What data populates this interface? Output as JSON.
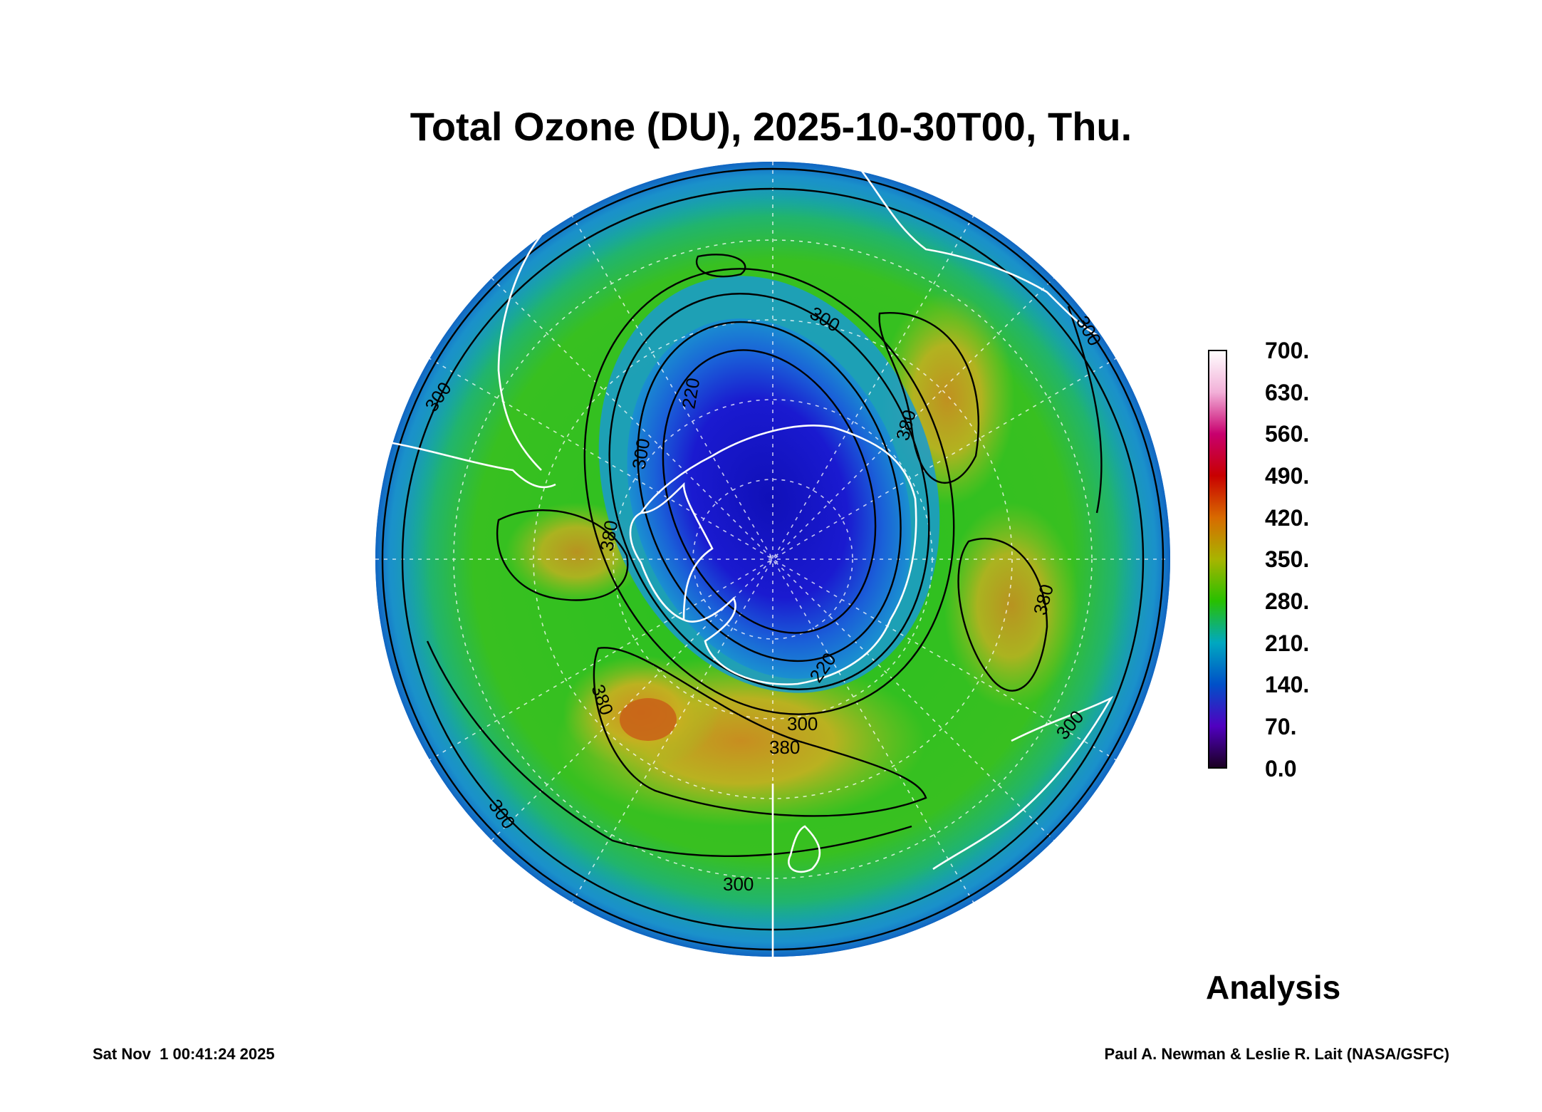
{
  "title": "Total Ozone (DU), 2025-10-30T00, Thu.",
  "colorbar": {
    "labels": [
      "700.",
      "630.",
      "560.",
      "490.",
      "420.",
      "350.",
      "280.",
      "210.",
      "140.",
      "70.",
      "0.0"
    ],
    "stops": [
      "#ffffff",
      "#f2b0d8",
      "#c8006e",
      "#c80000",
      "#d86a00",
      "#a8b400",
      "#28c000",
      "#00a8c0",
      "#0050c8",
      "#5000c0",
      "#1a0020"
    ]
  },
  "contour_labels": [
    "300",
    "220",
    "300",
    "380",
    "300",
    "380",
    "220",
    "300",
    "380",
    "380",
    "380",
    "300",
    "300",
    "300",
    "300"
  ],
  "product": "Analysis",
  "footer": {
    "timestamp": "Sat Nov  1 00:41:24 2025",
    "credit": "Paul A. Newman & Leslie R. Lait (NASA/GSFC)"
  },
  "colors": {
    "hole": "#1010c0",
    "collar": "#d8a020",
    "midlatitude": "#40c020",
    "edge": "#10a0d0",
    "coastline": "#ffffff",
    "contour": "#000000"
  }
}
